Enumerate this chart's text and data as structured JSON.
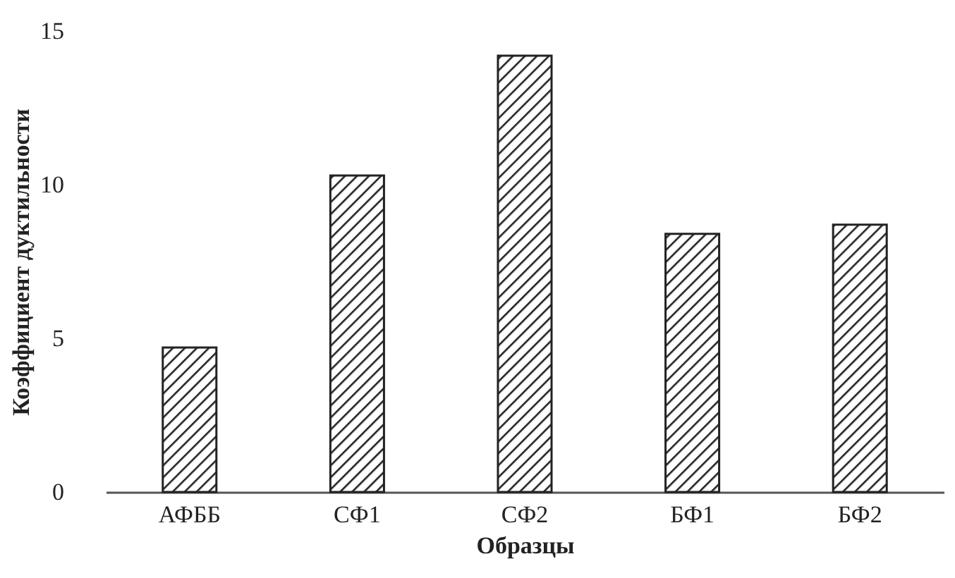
{
  "chart_data": {
    "type": "bar",
    "xlabel": "Образцы",
    "ylabel": "Коэффициент дуктильности",
    "categories": [
      "АФББ",
      "СФ1",
      "СФ2",
      "БФ1",
      "БФ2"
    ],
    "values": [
      4.7,
      10.3,
      14.2,
      8.4,
      8.7
    ],
    "color": "#222222",
    "ylim": [
      0,
      15
    ],
    "yticks": [
      0,
      5,
      10,
      15
    ],
    "grid": false
  }
}
